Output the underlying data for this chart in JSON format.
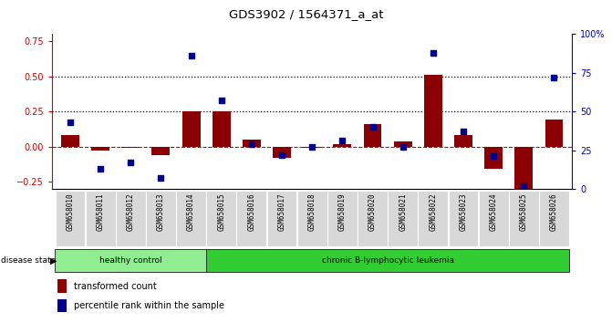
{
  "title": "GDS3902 / 1564371_a_at",
  "samples": [
    "GSM658010",
    "GSM658011",
    "GSM658012",
    "GSM658013",
    "GSM658014",
    "GSM658015",
    "GSM658016",
    "GSM658017",
    "GSM658018",
    "GSM658019",
    "GSM658020",
    "GSM658021",
    "GSM658022",
    "GSM658023",
    "GSM658024",
    "GSM658025",
    "GSM658026"
  ],
  "transformed_count": [
    0.08,
    -0.03,
    -0.01,
    -0.06,
    0.25,
    0.25,
    0.05,
    -0.08,
    -0.01,
    0.02,
    0.16,
    0.04,
    0.51,
    0.08,
    -0.16,
    -0.3,
    0.19
  ],
  "percentile_rank": [
    43,
    13,
    17,
    7,
    86,
    57,
    29,
    22,
    27,
    31,
    40,
    27,
    88,
    37,
    21,
    2,
    72
  ],
  "healthy_control_count": 5,
  "disease_group_1": "healthy control",
  "disease_group_2": "chronic B-lymphocytic leukemia",
  "bar_color": "#8B0000",
  "dot_color": "#00008B",
  "left_axis_color": "#cc0000",
  "right_axis_color": "#0000cc",
  "ylim_left": [
    -0.3,
    0.8
  ],
  "ylim_right": [
    0,
    100
  ],
  "yticks_left": [
    -0.25,
    0.0,
    0.25,
    0.5,
    0.75
  ],
  "yticks_right": [
    0,
    25,
    50,
    75,
    100
  ],
  "hlines": [
    0.25,
    0.5
  ],
  "hc_color": "#90EE90",
  "leuk_color": "#32CD32",
  "label_bg": "#d8d8d8"
}
